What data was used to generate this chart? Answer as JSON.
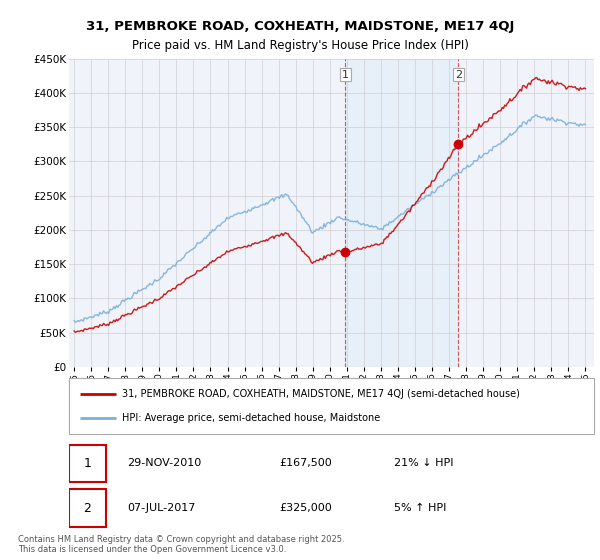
{
  "title": "31, PEMBROKE ROAD, COXHEATH, MAIDSTONE, ME17 4QJ",
  "subtitle": "Price paid vs. HM Land Registry's House Price Index (HPI)",
  "legend_label_red": "31, PEMBROKE ROAD, COXHEATH, MAIDSTONE, ME17 4QJ (semi-detached house)",
  "legend_label_blue": "HPI: Average price, semi-detached house, Maidstone",
  "annotation1_date": "29-NOV-2010",
  "annotation1_price": "£167,500",
  "annotation1_hpi": "21% ↓ HPI",
  "annotation2_date": "07-JUL-2017",
  "annotation2_price": "£325,000",
  "annotation2_hpi": "5% ↑ HPI",
  "footnote": "Contains HM Land Registry data © Crown copyright and database right 2025.\nThis data is licensed under the Open Government Licence v3.0.",
  "ylim": [
    0,
    450000
  ],
  "yticks": [
    0,
    50000,
    100000,
    150000,
    200000,
    250000,
    300000,
    350000,
    400000,
    450000
  ],
  "ytick_labels": [
    "£0",
    "£50K",
    "£100K",
    "£150K",
    "£200K",
    "£250K",
    "£300K",
    "£350K",
    "£400K",
    "£450K"
  ],
  "vline1_x": 2010.92,
  "vline2_x": 2017.54,
  "sale1_x": 2010.92,
  "sale1_y": 167500,
  "sale2_x": 2017.54,
  "sale2_y": 325000,
  "bg_color": "#f0f4fa",
  "red_color": "#cc0000",
  "blue_color": "#7aafde",
  "grid_color": "#cccccc",
  "xlim_left": 1994.7,
  "xlim_right": 2025.5
}
